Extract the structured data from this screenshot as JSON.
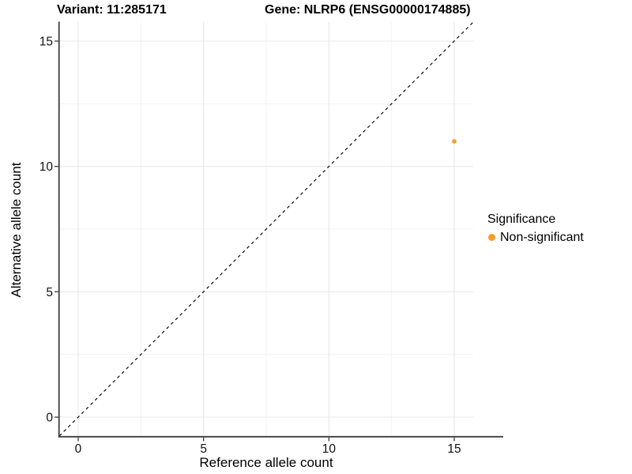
{
  "chart_data": {
    "type": "scatter",
    "title_left": "Variant: 11:285171",
    "title_right": "Gene: NLRP6 (ENSG00000174885)",
    "xlabel": "Reference allele count",
    "ylabel": "Alternative allele count",
    "xlim": [
      -0.756,
      15.756
    ],
    "ylim": [
      -0.756,
      15.756
    ],
    "x_ticks": [
      0,
      5,
      10,
      15
    ],
    "y_ticks": [
      0,
      5,
      10,
      15
    ],
    "x_minor_ticks": [
      2.5,
      7.5,
      12.5
    ],
    "y_minor_ticks": [
      2.5,
      7.5,
      12.5
    ],
    "grid": "major+minor",
    "reference_line": {
      "slope": 1,
      "intercept": 0,
      "style": "dashed",
      "color": "#000000"
    },
    "series": [
      {
        "name": "Non-significant",
        "color": "#F99C22",
        "points": [
          {
            "x": 15,
            "y": 11
          }
        ]
      }
    ],
    "legend": {
      "title": "Significance",
      "position": "right",
      "entries": [
        {
          "label": "Non-significant",
          "color": "#F99C22"
        }
      ]
    },
    "colors": {
      "background": "#ffffff",
      "axis_line": "#3d3d3d",
      "tick_mark": "#3d3d3d",
      "tick_label": "#111111",
      "major_grid": "#e8e8e8",
      "minor_grid": "#f3f3f3",
      "point": "#F99C22"
    }
  }
}
